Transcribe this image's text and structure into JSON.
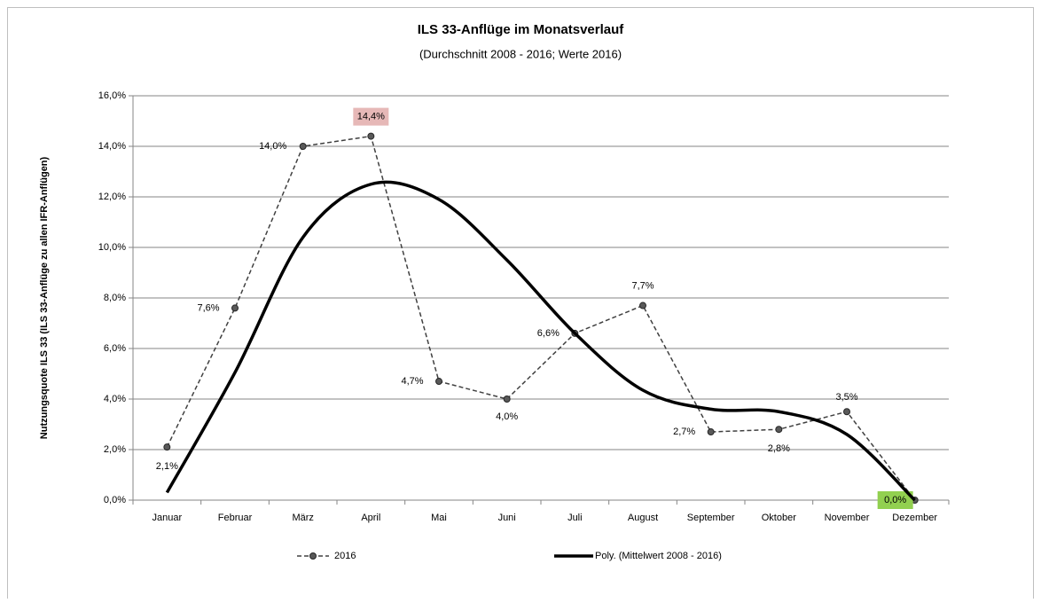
{
  "chart_data": {
    "type": "line",
    "title": "ILS 33-Anflüge im Monatsverlauf",
    "subtitle": "(Durchschnitt 2008 - 2016; Werte 2016)",
    "y_label": "Nutzungsquote ILS 33 (ILS 33-Anflüge zu allen IFR-Anflügen)",
    "categories": [
      "Januar",
      "Februar",
      "März",
      "April",
      "Mai",
      "Juni",
      "Juli",
      "August",
      "September",
      "Oktober",
      "November",
      "Dezember"
    ],
    "series": [
      {
        "name": "2016",
        "color": "#404040",
        "style": "dashed-markers",
        "values": [
          2.1,
          7.6,
          14.0,
          14.4,
          4.7,
          4.0,
          6.6,
          7.7,
          2.7,
          2.8,
          3.5,
          0.0
        ],
        "value_labels": [
          "2,1%",
          "7,6%",
          "14,0%",
          "14,4%",
          "4,7%",
          "4,0%",
          "6,6%",
          "7,7%",
          "2,7%",
          "2,8%",
          "3,5%",
          "0,0%"
        ]
      },
      {
        "name": "Poly. (Mittelwert 2008 - 2016)",
        "color": "#000000",
        "style": "smooth-thick",
        "values": [
          0.3,
          5.05,
          10.4,
          12.5,
          11.9,
          9.5,
          6.6,
          4.35,
          3.6,
          3.5,
          2.6,
          0.0
        ]
      }
    ],
    "label_highlights": [
      {
        "index": 3,
        "color": "#e6b8b7"
      },
      {
        "index": 11,
        "color": "#92d050"
      }
    ],
    "ylim": [
      0,
      16
    ],
    "yticks": [
      {
        "value": 0,
        "label": "0,0%"
      },
      {
        "value": 2,
        "label": "2,0%"
      },
      {
        "value": 4,
        "label": "4,0%"
      },
      {
        "value": 6,
        "label": "6,0%"
      },
      {
        "value": 8,
        "label": "8,0%"
      },
      {
        "value": 10,
        "label": "10,0%"
      },
      {
        "value": 12,
        "label": "12,0%"
      },
      {
        "value": 14,
        "label": "14,0%"
      },
      {
        "value": 16,
        "label": "16,0%"
      }
    ],
    "grid": true,
    "legend": "bottom"
  }
}
